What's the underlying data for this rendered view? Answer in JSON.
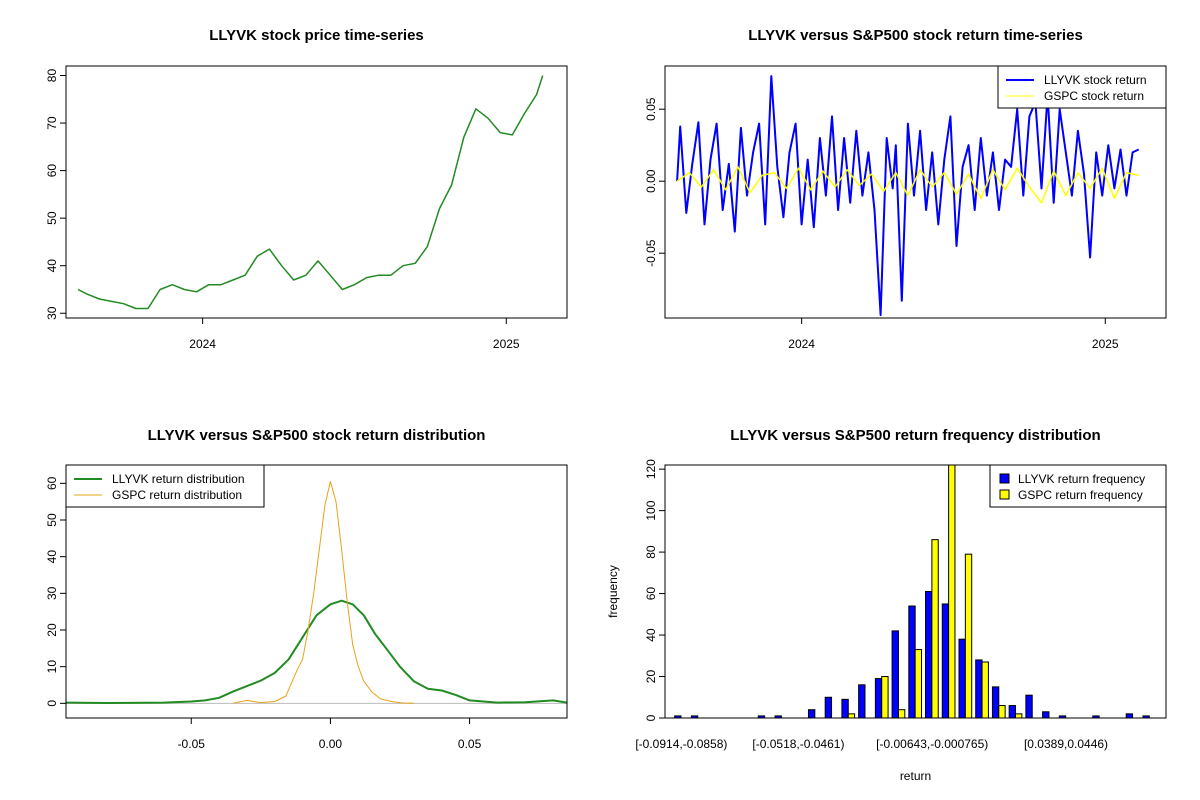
{
  "colors": {
    "llyvk": "#0000ff",
    "gspc": "#ffff00",
    "price": "#228b22",
    "density_llyvk": "#228b22",
    "density_gspc": "#e8a317"
  },
  "chart_data": [
    {
      "type": "line",
      "title": "LLYVK stock price time-series",
      "xlabel": "",
      "ylabel": "",
      "xlim": [
        2023.55,
        2025.2
      ],
      "ylim": [
        29,
        82
      ],
      "xticks": [
        {
          "v": 2024,
          "label": "2024"
        },
        {
          "v": 2025,
          "label": "2025"
        }
      ],
      "yticks": [
        {
          "v": 30,
          "label": "30"
        },
        {
          "v": 40,
          "label": "40"
        },
        {
          "v": 50,
          "label": "50"
        },
        {
          "v": 60,
          "label": "60"
        },
        {
          "v": 70,
          "label": "70"
        },
        {
          "v": 80,
          "label": "80"
        }
      ],
      "series": [
        {
          "name": "LLYVK price",
          "color": "#228b22",
          "x": [
            2023.59,
            2023.62,
            2023.66,
            2023.7,
            2023.74,
            2023.78,
            2023.82,
            2023.86,
            2023.9,
            2023.94,
            2023.98,
            2024.02,
            2024.06,
            2024.1,
            2024.14,
            2024.18,
            2024.22,
            2024.26,
            2024.3,
            2024.34,
            2024.38,
            2024.42,
            2024.46,
            2024.5,
            2024.54,
            2024.58,
            2024.62,
            2024.66,
            2024.7,
            2024.74,
            2024.78,
            2024.82,
            2024.86,
            2024.9,
            2024.94,
            2024.98,
            2025.02,
            2025.06,
            2025.1,
            2025.12
          ],
          "values": [
            35,
            34,
            33,
            32.5,
            32,
            31,
            31,
            35,
            36,
            35,
            34.5,
            36,
            36,
            37,
            38,
            42,
            43.5,
            40,
            37,
            38,
            41,
            38,
            35,
            36,
            37.5,
            38,
            38,
            40,
            40.5,
            44,
            52,
            57,
            67,
            73,
            71,
            68,
            67.5,
            72,
            76,
            80
          ]
        }
      ]
    },
    {
      "type": "line",
      "title": "LLYVK versus S&P500 stock return time-series",
      "xlabel": "",
      "ylabel": "",
      "xlim": [
        2023.55,
        2025.2
      ],
      "ylim": [
        -0.095,
        0.08
      ],
      "xticks": [
        {
          "v": 2024,
          "label": "2024"
        },
        {
          "v": 2025,
          "label": "2025"
        }
      ],
      "yticks": [
        {
          "v": -0.05,
          "label": "-0.05"
        },
        {
          "v": 0,
          "label": "0.00"
        },
        {
          "v": 0.05,
          "label": "0.05"
        }
      ],
      "legend": [
        "LLYVK stock return",
        "GSPC stock return"
      ],
      "series": [
        {
          "name": "LLYVK stock return",
          "color": "#0000ff",
          "x": [
            2023.59,
            2023.6,
            2023.62,
            2023.64,
            2023.66,
            2023.68,
            2023.7,
            2023.72,
            2023.74,
            2023.76,
            2023.78,
            2023.8,
            2023.82,
            2023.84,
            2023.86,
            2023.88,
            2023.9,
            2023.92,
            2023.94,
            2023.96,
            2023.98,
            2024.0,
            2024.02,
            2024.04,
            2024.06,
            2024.08,
            2024.1,
            2024.12,
            2024.14,
            2024.16,
            2024.18,
            2024.2,
            2024.22,
            2024.24,
            2024.26,
            2024.28,
            2024.3,
            2024.31,
            2024.33,
            2024.35,
            2024.37,
            2024.39,
            2024.41,
            2024.43,
            2024.45,
            2024.47,
            2024.49,
            2024.51,
            2024.53,
            2024.55,
            2024.57,
            2024.59,
            2024.61,
            2024.63,
            2024.65,
            2024.67,
            2024.69,
            2024.71,
            2024.73,
            2024.75,
            2024.77,
            2024.79,
            2024.81,
            2024.83,
            2024.85,
            2024.87,
            2024.89,
            2024.91,
            2024.93,
            2024.95,
            2024.97,
            2024.99,
            2025.01,
            2025.03,
            2025.05,
            2025.07,
            2025.09,
            2025.11
          ],
          "values": [
            0,
            0.038,
            -0.022,
            0.012,
            0.041,
            -0.03,
            0.015,
            0.04,
            -0.02,
            0.012,
            -0.035,
            0.037,
            -0.01,
            0.02,
            0.04,
            -0.03,
            0.073,
            0.01,
            -0.025,
            0.02,
            0.04,
            -0.03,
            0.015,
            -0.032,
            0.03,
            -0.01,
            0.045,
            -0.02,
            0.03,
            -0.015,
            0.035,
            -0.01,
            0.02,
            -0.02,
            -0.093,
            0.03,
            -0.005,
            0.025,
            -0.083,
            0.04,
            -0.01,
            0.035,
            -0.02,
            0.02,
            -0.03,
            0.015,
            0.045,
            -0.045,
            0.01,
            0.025,
            -0.02,
            0.03,
            -0.01,
            0.02,
            -0.02,
            0.015,
            0.01,
            0.05,
            -0.01,
            0.045,
            0.055,
            -0.005,
            0.06,
            -0.015,
            0.05,
            0.02,
            -0.01,
            0.035,
            0.005,
            -0.053,
            0.02,
            -0.01,
            0.025,
            -0.005,
            0.022,
            -0.01,
            0.02,
            0.022
          ]
        },
        {
          "name": "GSPC stock return",
          "color": "#ffff00",
          "x": [
            2023.59,
            2023.63,
            2023.67,
            2023.71,
            2023.75,
            2023.79,
            2023.83,
            2023.87,
            2023.91,
            2023.95,
            2023.99,
            2024.03,
            2024.07,
            2024.11,
            2024.15,
            2024.19,
            2024.23,
            2024.27,
            2024.31,
            2024.35,
            2024.39,
            2024.43,
            2024.47,
            2024.51,
            2024.55,
            2024.59,
            2024.63,
            2024.67,
            2024.71,
            2024.75,
            2024.79,
            2024.83,
            2024.87,
            2024.91,
            2024.95,
            2024.99,
            2025.03,
            2025.07,
            2025.11
          ],
          "values": [
            0,
            0.006,
            -0.004,
            0.008,
            -0.006,
            0.01,
            -0.008,
            0.004,
            0.006,
            -0.005,
            0.009,
            -0.006,
            0.007,
            -0.004,
            0.008,
            -0.003,
            0.005,
            -0.007,
            0.006,
            -0.01,
            0.008,
            -0.004,
            0.006,
            -0.009,
            0.005,
            -0.012,
            0.008,
            -0.006,
            0.009,
            -0.004,
            -0.015,
            0.007,
            -0.01,
            0.006,
            -0.005,
            0.009,
            -0.012,
            0.006,
            0.004
          ]
        }
      ]
    },
    {
      "type": "line",
      "title": "LLYVK versus S&P500 stock return distribution",
      "xlabel": "",
      "ylabel": "",
      "xlim": [
        -0.095,
        0.085
      ],
      "ylim": [
        -4,
        65
      ],
      "xticks": [
        {
          "v": -0.05,
          "label": "-0.05"
        },
        {
          "v": 0,
          "label": "0.00"
        },
        {
          "v": 0.05,
          "label": "0.05"
        }
      ],
      "yticks": [
        {
          "v": 0,
          "label": "0"
        },
        {
          "v": 10,
          "label": "10"
        },
        {
          "v": 20,
          "label": "20"
        },
        {
          "v": 30,
          "label": "30"
        },
        {
          "v": 40,
          "label": "40"
        },
        {
          "v": 50,
          "label": "50"
        },
        {
          "v": 60,
          "label": "60"
        }
      ],
      "legend": [
        "LLYVK return distribution",
        "GSPC return distribution"
      ],
      "series": [
        {
          "name": "LLYVK return distribution",
          "color": "#228b22",
          "x": [
            -0.095,
            -0.08,
            -0.06,
            -0.05,
            -0.045,
            -0.04,
            -0.035,
            -0.03,
            -0.025,
            -0.02,
            -0.015,
            -0.01,
            -0.005,
            0,
            0.004,
            0.008,
            0.012,
            0.016,
            0.02,
            0.025,
            0.03,
            0.035,
            0.04,
            0.045,
            0.05,
            0.06,
            0.07,
            0.08,
            0.085
          ],
          "values": [
            0.2,
            0.1,
            0.2,
            0.5,
            0.8,
            1.5,
            3.2,
            4.7,
            6.2,
            8.3,
            12,
            18,
            24,
            27,
            28,
            27,
            24,
            19,
            15,
            10,
            6,
            4,
            3.5,
            2.3,
            0.8,
            0.2,
            0.3,
            0.8,
            0.2
          ]
        },
        {
          "name": "GSPC return distribution",
          "color": "#e8a317",
          "x": [
            -0.035,
            -0.03,
            -0.025,
            -0.02,
            -0.016,
            -0.012,
            -0.01,
            -0.008,
            -0.006,
            -0.004,
            -0.002,
            0,
            0.002,
            0.004,
            0.006,
            0.008,
            0.01,
            0.012,
            0.015,
            0.018,
            0.022,
            0.026,
            0.03
          ],
          "values": [
            0,
            0.8,
            0.2,
            0.5,
            2,
            9,
            12,
            20,
            30,
            42,
            54,
            60.5,
            55,
            42,
            28,
            16,
            10,
            6,
            3,
            1.2,
            0.5,
            0.1,
            0
          ]
        }
      ]
    },
    {
      "type": "bar",
      "title": "LLYVK versus S&P500 return frequency distribution",
      "xlabel": "return",
      "ylabel": "frequency",
      "ylim": [
        0,
        122
      ],
      "yticks": [
        {
          "v": 0,
          "label": "0"
        },
        {
          "v": 20,
          "label": "20"
        },
        {
          "v": 40,
          "label": "40"
        },
        {
          "v": 60,
          "label": "60"
        },
        {
          "v": 80,
          "label": "80"
        },
        {
          "v": 100,
          "label": "100"
        },
        {
          "v": 120,
          "label": "120"
        }
      ],
      "category_labels": [
        {
          "index": 0,
          "label": "[-0.0914,-0.0858)"
        },
        {
          "index": 7,
          "label": "[-0.0518,-0.0461)"
        },
        {
          "index": 15,
          "label": "[-0.00643,-0.000765)"
        },
        {
          "index": 23,
          "label": "[0.0389,0.0446)"
        }
      ],
      "legend": [
        "LLYVK return frequency",
        "GSPC return frequency"
      ],
      "series": [
        {
          "name": "LLYVK return frequency",
          "color": "#0000ff",
          "values": [
            1,
            1,
            0,
            0,
            0,
            1,
            1,
            0,
            4,
            10,
            9,
            16,
            19,
            42,
            54,
            61,
            55,
            38,
            28,
            15,
            6,
            11,
            3,
            1,
            0,
            1,
            0,
            2,
            1
          ]
        },
        {
          "name": "GSPC return frequency",
          "color": "#ffff00",
          "values": [
            0,
            0,
            0,
            0,
            0,
            0,
            0,
            0,
            0,
            0,
            2,
            0,
            20,
            4,
            33,
            86,
            122,
            79,
            27,
            6,
            2,
            0,
            0,
            0,
            0,
            0,
            0,
            0,
            0
          ]
        }
      ]
    }
  ]
}
